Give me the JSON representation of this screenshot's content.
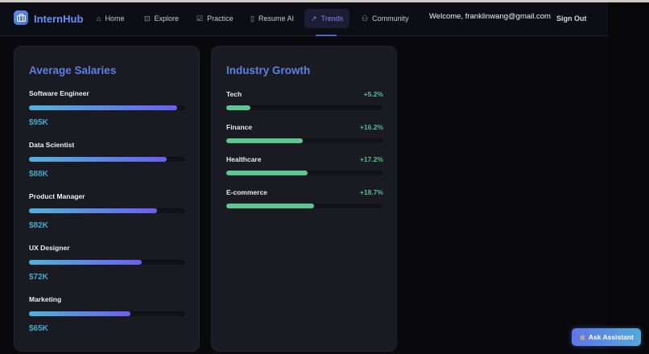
{
  "nav": {
    "brand": "InternHub",
    "items": [
      {
        "label": "Home",
        "icon": "home-icon",
        "glyph": "⌂"
      },
      {
        "label": "Explore",
        "icon": "briefcase-icon",
        "glyph": "⊡"
      },
      {
        "label": "Practice",
        "icon": "checkbox-icon",
        "glyph": "☑"
      },
      {
        "label": "Resume AI",
        "icon": "document-icon",
        "glyph": "▯"
      },
      {
        "label": "Trends",
        "icon": "trending-up-icon",
        "glyph": "↗",
        "active": true
      },
      {
        "label": "Community",
        "icon": "users-icon",
        "glyph": "⚇"
      }
    ],
    "welcome": "Welcome, franklinwang@gmail.com",
    "sign_out": "Sign Out"
  },
  "salaries": {
    "title": "Average Salaries",
    "items": [
      {
        "role": "Software Engineer",
        "value": "$95K",
        "fill_pct": 95
      },
      {
        "role": "Data Scientist",
        "value": "$88K",
        "fill_pct": 88
      },
      {
        "role": "Product Manager",
        "value": "$82K",
        "fill_pct": 82
      },
      {
        "role": "UX Designer",
        "value": "$72K",
        "fill_pct": 72
      },
      {
        "role": "Marketing",
        "value": "$65K",
        "fill_pct": 65
      }
    ]
  },
  "growth": {
    "title": "Industry Growth",
    "items": [
      {
        "industry": "Tech",
        "value": "+5.2%",
        "fill_pct": 15.6
      },
      {
        "industry": "Finance",
        "value": "+16.2%",
        "fill_pct": 48.6
      },
      {
        "industry": "Healthcare",
        "value": "+17.2%",
        "fill_pct": 51.6
      },
      {
        "industry": "E-commerce",
        "value": "+18.7%",
        "fill_pct": 56.1
      }
    ]
  },
  "assistant": {
    "label": "Ask Assistant",
    "icon": "robot-icon",
    "glyph": "🤖"
  },
  "colors": {
    "accent": "#6b8ef0",
    "salary_value": "#46a8c8",
    "growth": "#5cc88f",
    "card": "#1a1b22"
  }
}
